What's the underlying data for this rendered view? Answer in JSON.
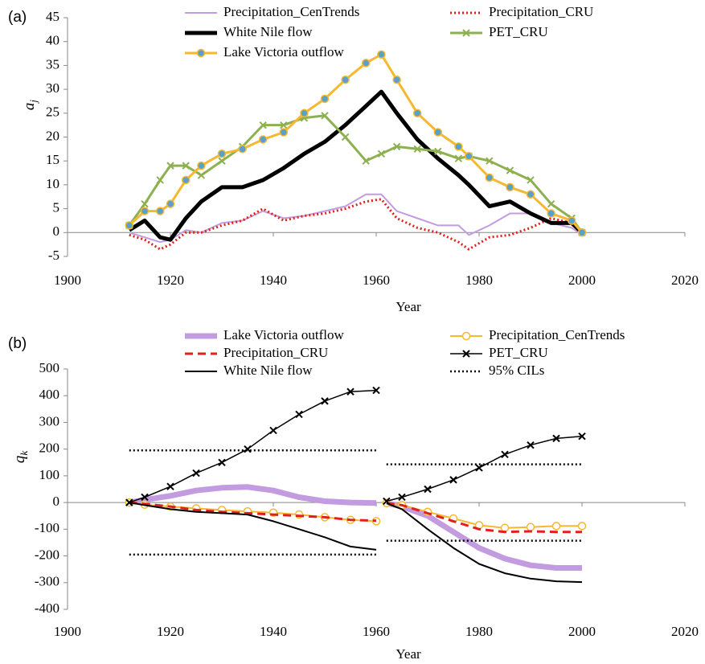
{
  "chart_data": [
    {
      "type": "line",
      "panel_label": "(a)",
      "xlabel": "Year",
      "ylabel": {
        "text": "a",
        "sub": "j"
      },
      "xlim": [
        1900,
        2020
      ],
      "xticks": [
        1900,
        1920,
        1940,
        1960,
        1980,
        2000,
        2020
      ],
      "ylim": [
        -5,
        45
      ],
      "yticks": [
        -5,
        0,
        5,
        10,
        15,
        20,
        25,
        30,
        35,
        40,
        45
      ],
      "x": [
        1912,
        1915,
        1918,
        1920,
        1923,
        1926,
        1930,
        1934,
        1938,
        1942,
        1946,
        1950,
        1954,
        1958,
        1961,
        1964,
        1968,
        1972,
        1976,
        1978,
        1982,
        1986,
        1990,
        1994,
        1998,
        2000
      ],
      "series": [
        {
          "name": "Precipitation_CenTrends",
          "color": "#c39be0",
          "width": 2,
          "values": [
            0,
            -1,
            -2,
            -1.5,
            0.5,
            0,
            2,
            2.5,
            4.5,
            3,
            3.5,
            4.5,
            5.5,
            8,
            8,
            4.5,
            3,
            1.5,
            1.5,
            -0.5,
            1.5,
            4,
            4,
            2,
            1,
            -0.5
          ]
        },
        {
          "name": "Precipitation_CRU",
          "color": "#e0201b",
          "width": 3,
          "dash": "dot",
          "values": [
            -0.5,
            -1.5,
            -3.5,
            -2.5,
            0,
            0,
            1.5,
            2.5,
            5,
            2.5,
            3.5,
            4,
            5,
            6.5,
            7,
            3,
            1,
            0,
            -2,
            -3.5,
            -1,
            -0.5,
            1,
            3,
            2,
            0
          ]
        },
        {
          "name": "White Nile flow",
          "color": "#000000",
          "width": 5,
          "values": [
            0.5,
            2.5,
            -1,
            -1.5,
            3,
            6.5,
            9.5,
            9.5,
            11,
            13.5,
            16.5,
            19,
            22.5,
            26.5,
            29.5,
            25,
            19.5,
            15.5,
            12,
            10,
            5.5,
            6.5,
            4,
            2,
            2,
            0
          ]
        },
        {
          "name": "PET_CRU",
          "color": "#8db050",
          "width": 3,
          "marker": "x",
          "values": [
            1.5,
            6,
            11,
            14,
            14,
            12,
            15,
            18,
            22.5,
            22.5,
            24,
            24.5,
            20,
            15,
            16.5,
            18,
            17.5,
            17,
            15.5,
            16,
            15,
            13,
            11,
            6,
            3,
            0
          ]
        },
        {
          "name": "Lake Victoria outflow",
          "color": "#f5b830",
          "width": 3,
          "marker": "circle",
          "marker_fill": "#5aa0c8",
          "values": [
            1.5,
            4.5,
            4.5,
            6,
            11,
            14,
            16.5,
            17.5,
            19.5,
            21,
            25,
            28,
            32,
            35.5,
            37.3,
            32,
            25,
            21,
            18,
            16,
            11.5,
            9.5,
            8,
            4,
            2.5,
            0
          ]
        }
      ]
    },
    {
      "type": "line",
      "panel_label": "(b)",
      "xlabel": "Year",
      "ylabel": {
        "text": "q",
        "sub": "k"
      },
      "xlim": [
        1900,
        2020
      ],
      "xticks": [
        1900,
        1920,
        1940,
        1960,
        1980,
        2000,
        2020
      ],
      "ylim": [
        -400,
        500
      ],
      "yticks": [
        -400,
        -300,
        -200,
        -100,
        0,
        100,
        200,
        300,
        400,
        500
      ],
      "x": [
        1912,
        1915,
        1920,
        1925,
        1930,
        1935,
        1940,
        1945,
        1950,
        1955,
        1960,
        1961,
        1962,
        1965,
        1970,
        1975,
        1980,
        1985,
        1990,
        1995,
        2000
      ],
      "series": [
        {
          "name": "Lake Victoria outflow",
          "color": "#c39be0",
          "width": 7,
          "values": [
            0,
            10,
            25,
            45,
            55,
            58,
            45,
            20,
            5,
            0,
            -2,
            null,
            -2,
            -15,
            -50,
            -110,
            -170,
            -210,
            -235,
            -245,
            -245
          ]
        },
        {
          "name": "Precipitation_CenTrends",
          "color": "#f5b830",
          "width": 2,
          "marker": "circle",
          "marker_fill": "#ffffff",
          "values": [
            0,
            -8,
            -15,
            -22,
            -28,
            -33,
            -38,
            -45,
            -55,
            -65,
            -70,
            null,
            -2,
            -10,
            -35,
            -60,
            -85,
            -95,
            -92,
            -88,
            -88
          ]
        },
        {
          "name": "Precipitation_CRU",
          "color": "#e0201b",
          "width": 3,
          "dash": "dash",
          "values": [
            0,
            -5,
            -15,
            -28,
            -35,
            -40,
            -45,
            -50,
            -55,
            -65,
            -68,
            null,
            -2,
            -10,
            -40,
            -70,
            -100,
            -110,
            -108,
            -110,
            -110
          ]
        },
        {
          "name": "PET_CRU",
          "color": "#000000",
          "width": 1.5,
          "marker": "x",
          "values": [
            0,
            20,
            60,
            110,
            150,
            200,
            270,
            330,
            380,
            415,
            420,
            null,
            5,
            20,
            50,
            85,
            130,
            180,
            215,
            240,
            248
          ]
        },
        {
          "name": "White Nile flow",
          "color": "#000000",
          "width": 2,
          "values": [
            0,
            -10,
            -25,
            -35,
            -40,
            -45,
            -70,
            -100,
            -130,
            -165,
            -177,
            null,
            -3,
            -25,
            -100,
            -170,
            -230,
            -265,
            -285,
            -295,
            -298
          ]
        },
        {
          "name": "95% CILs",
          "color": "#000000",
          "width": 2.5,
          "dash": "dot",
          "values": [
            195,
            195,
            195,
            195,
            195,
            195,
            195,
            195,
            195,
            195,
            195,
            null,
            143,
            143,
            143,
            143,
            143,
            143,
            143,
            143,
            143
          ],
          "lower": [
            -195,
            -195,
            -195,
            -195,
            -195,
            -195,
            -195,
            -195,
            -195,
            -195,
            -195,
            null,
            -143,
            -143,
            -143,
            -143,
            -143,
            -143,
            -143,
            -143,
            -143
          ]
        }
      ]
    }
  ]
}
